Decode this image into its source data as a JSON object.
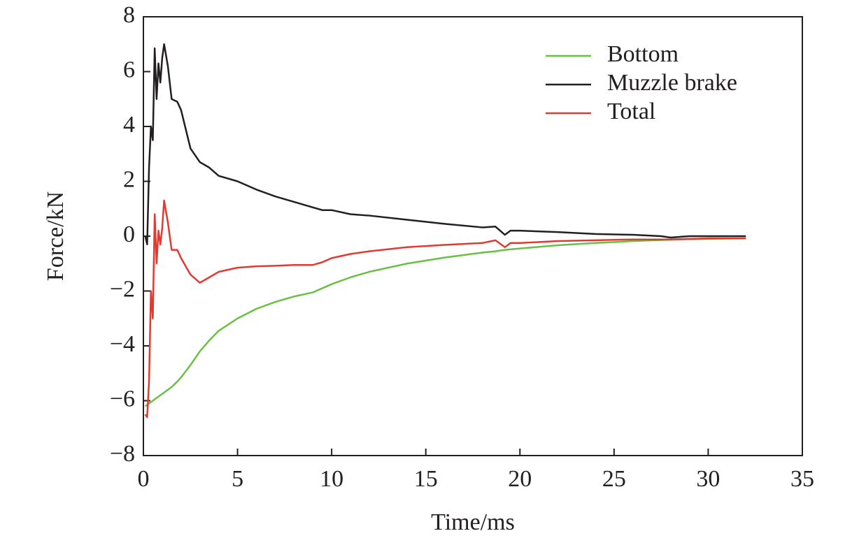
{
  "chart_data": {
    "type": "line",
    "xlabel": "Time/ms",
    "ylabel": "Force/kN",
    "x": [
      0.1,
      0.2,
      0.3,
      0.4,
      0.5,
      0.6,
      0.7,
      0.8,
      0.9,
      1.0,
      1.1,
      1.3,
      1.5,
      1.8,
      2.0,
      2.5,
      3,
      3.5,
      4,
      5,
      6,
      7,
      8,
      9,
      9.5,
      10,
      11,
      12,
      14,
      16,
      18,
      18.7,
      19.2,
      19.5,
      20,
      22,
      24,
      26,
      27.5,
      28,
      29,
      30,
      32
    ],
    "series": [
      {
        "name": "Bottom",
        "color": "#6abf45",
        "values": [
          -6.2,
          -6.15,
          -6.1,
          -6.05,
          -6.0,
          -5.95,
          -5.9,
          -5.85,
          -5.8,
          -5.75,
          -5.7,
          -5.6,
          -5.5,
          -5.3,
          -5.15,
          -4.7,
          -4.2,
          -3.8,
          -3.45,
          -3.0,
          -2.65,
          -2.4,
          -2.2,
          -2.05,
          -1.9,
          -1.75,
          -1.5,
          -1.3,
          -1.0,
          -0.78,
          -0.6,
          -0.55,
          -0.5,
          -0.48,
          -0.45,
          -0.33,
          -0.25,
          -0.18,
          -0.14,
          -0.13,
          -0.11,
          -0.1,
          -0.08
        ]
      },
      {
        "name": "Muzzle brake",
        "color": "#231f20",
        "values": [
          0,
          -0.3,
          2.5,
          4.0,
          3.5,
          6.85,
          5.0,
          6.3,
          5.6,
          6.5,
          7.0,
          6.2,
          5.0,
          4.9,
          4.6,
          3.2,
          2.7,
          2.5,
          2.2,
          2.0,
          1.7,
          1.45,
          1.25,
          1.05,
          0.95,
          0.95,
          0.8,
          0.75,
          0.6,
          0.45,
          0.32,
          0.35,
          0.05,
          0.2,
          0.2,
          0.15,
          0.08,
          0.05,
          0.0,
          -0.05,
          0.0,
          0.0,
          0.0
        ]
      },
      {
        "name": "Total",
        "color": "#e03a32",
        "values": [
          -6.5,
          -6.6,
          -5.3,
          -2.0,
          -3.0,
          0.8,
          -1.0,
          0.2,
          -0.3,
          0.3,
          1.3,
          0.5,
          -0.5,
          -0.5,
          -0.8,
          -1.4,
          -1.7,
          -1.5,
          -1.3,
          -1.15,
          -1.1,
          -1.08,
          -1.05,
          -1.05,
          -0.95,
          -0.8,
          -0.65,
          -0.55,
          -0.4,
          -0.32,
          -0.25,
          -0.15,
          -0.4,
          -0.25,
          -0.25,
          -0.18,
          -0.15,
          -0.12,
          -0.12,
          -0.12,
          -0.1,
          -0.08,
          -0.08
        ]
      }
    ],
    "xlim": [
      0,
      35
    ],
    "xticks": [
      0,
      5,
      10,
      15,
      20,
      25,
      30,
      35
    ],
    "ylim": [
      -8,
      8
    ],
    "yticks": [
      {
        "value": -8,
        "label": "−8"
      },
      {
        "value": -6,
        "label": "−6"
      },
      {
        "value": -4,
        "label": "−4"
      },
      {
        "value": -2,
        "label": "−2"
      },
      0,
      2,
      4,
      6,
      8
    ],
    "legend": "upper right",
    "grid": false
  }
}
